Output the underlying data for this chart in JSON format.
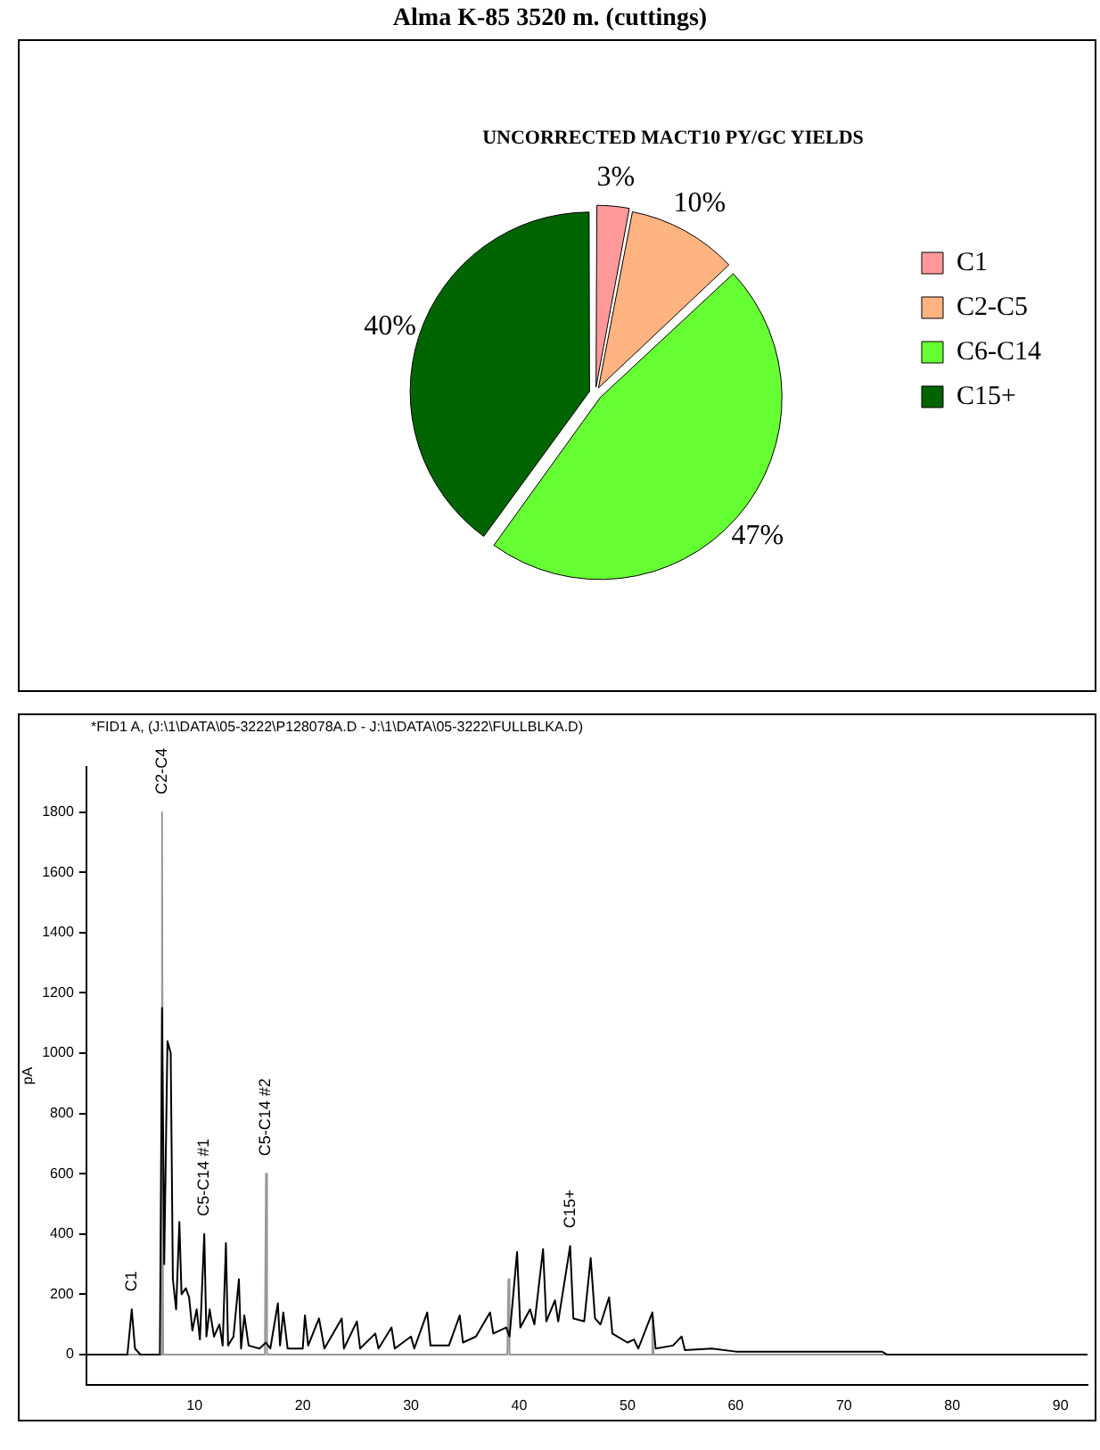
{
  "chart_data": [
    {
      "type": "pie",
      "title": "Alma K-85 3520 m. (cuttings)",
      "subtitle": "UNCORRECTED MACT10 PY/GC YIELDS",
      "categories": [
        "C1",
        "C2-C5",
        "C6-C14",
        "C15+"
      ],
      "values": [
        3,
        10,
        47,
        40
      ],
      "colors": [
        "#ff9999",
        "#ffb380",
        "#66ff33",
        "#006400"
      ],
      "value_labels": [
        "3%",
        "10%",
        "47%",
        "40%"
      ],
      "legend": "right"
    },
    {
      "type": "line",
      "ylabel": "pA",
      "xlim": [
        0,
        92.5
      ],
      "ylim": [
        -100,
        1950
      ],
      "xticks": [
        10,
        20,
        30,
        40,
        50,
        60,
        70,
        80,
        90
      ],
      "yticks": [
        0,
        200,
        400,
        600,
        800,
        1000,
        1200,
        1400,
        1600,
        1800
      ],
      "marker": "none",
      "annotations": [
        "*FID1 A, (J:\\1\\DATA\\05-3222\\P128078A.D - J:\\1\\DATA\\05-3222\\FULLBLKA.D)",
        {
          "text": "C1",
          "x": 4.2,
          "y": 150
        },
        {
          "text": "C2-C4",
          "x": 7.0,
          "y": 1800
        },
        {
          "text": "C5-C14 #1",
          "x": 10.9,
          "y": 400
        },
        {
          "text": "C5-C14 #2",
          "x": 16.6,
          "y": 600
        },
        {
          "text": "C15+",
          "x": 44.7,
          "y": 360
        }
      ],
      "series": [
        {
          "color": "#000000",
          "x": [
            0,
            3.8,
            4.2,
            4.5,
            5,
            6.8,
            7.0,
            7.2,
            7.5,
            7.8,
            8.0,
            8.3,
            8.6,
            8.8,
            9.2,
            9.5,
            9.8,
            10.2,
            10.5,
            10.9,
            11.1,
            11.4,
            11.8,
            12.3,
            12.6,
            12.9,
            13.1,
            13.6,
            14.1,
            14.3,
            14.6,
            15,
            16,
            16.6,
            17,
            17.7,
            17.9,
            18.2,
            18.6,
            20,
            20.2,
            20.5,
            21.5,
            22,
            23.6,
            23.8,
            25,
            25.3,
            26.7,
            27,
            28.2,
            28.5,
            30,
            30.3,
            31.5,
            31.8,
            33.5,
            34.5,
            34.8,
            36,
            37.3,
            37.6,
            38.8,
            39.1,
            39.8,
            40.1,
            41,
            41.4,
            42.2,
            42.5,
            43.3,
            43.6,
            44.7,
            45,
            46,
            46.6,
            47,
            47.5,
            48.3,
            48.6,
            50,
            50.6,
            51,
            52.3,
            52.6,
            54.2,
            55,
            55.3,
            57.8,
            60,
            65,
            73.5,
            74,
            92.5
          ],
          "values": [
            0,
            0,
            150,
            20,
            0,
            0,
            1150,
            300,
            1040,
            1000,
            250,
            150,
            440,
            200,
            220,
            190,
            80,
            150,
            50,
            400,
            60,
            150,
            60,
            100,
            30,
            370,
            30,
            60,
            250,
            20,
            130,
            30,
            20,
            40,
            20,
            170,
            30,
            140,
            20,
            20,
            130,
            30,
            120,
            20,
            120,
            20,
            110,
            20,
            70,
            20,
            90,
            20,
            60,
            20,
            140,
            30,
            30,
            130,
            40,
            60,
            140,
            70,
            90,
            60,
            340,
            90,
            150,
            100,
            350,
            110,
            180,
            110,
            360,
            120,
            110,
            320,
            120,
            100,
            190,
            70,
            40,
            50,
            20,
            140,
            20,
            30,
            60,
            15,
            20,
            10,
            10,
            10,
            0,
            0
          ]
        },
        {
          "color": "#999999",
          "x": [
            0,
            6.9,
            7.0,
            7.1,
            16.5,
            16.6,
            16.7,
            38.9,
            39.0,
            39.1,
            52.2,
            52.3,
            52.4,
            92.5
          ],
          "values": [
            0,
            0,
            1800,
            0,
            0,
            600,
            0,
            0,
            250,
            0,
            0,
            140,
            0,
            0
          ]
        }
      ]
    }
  ]
}
